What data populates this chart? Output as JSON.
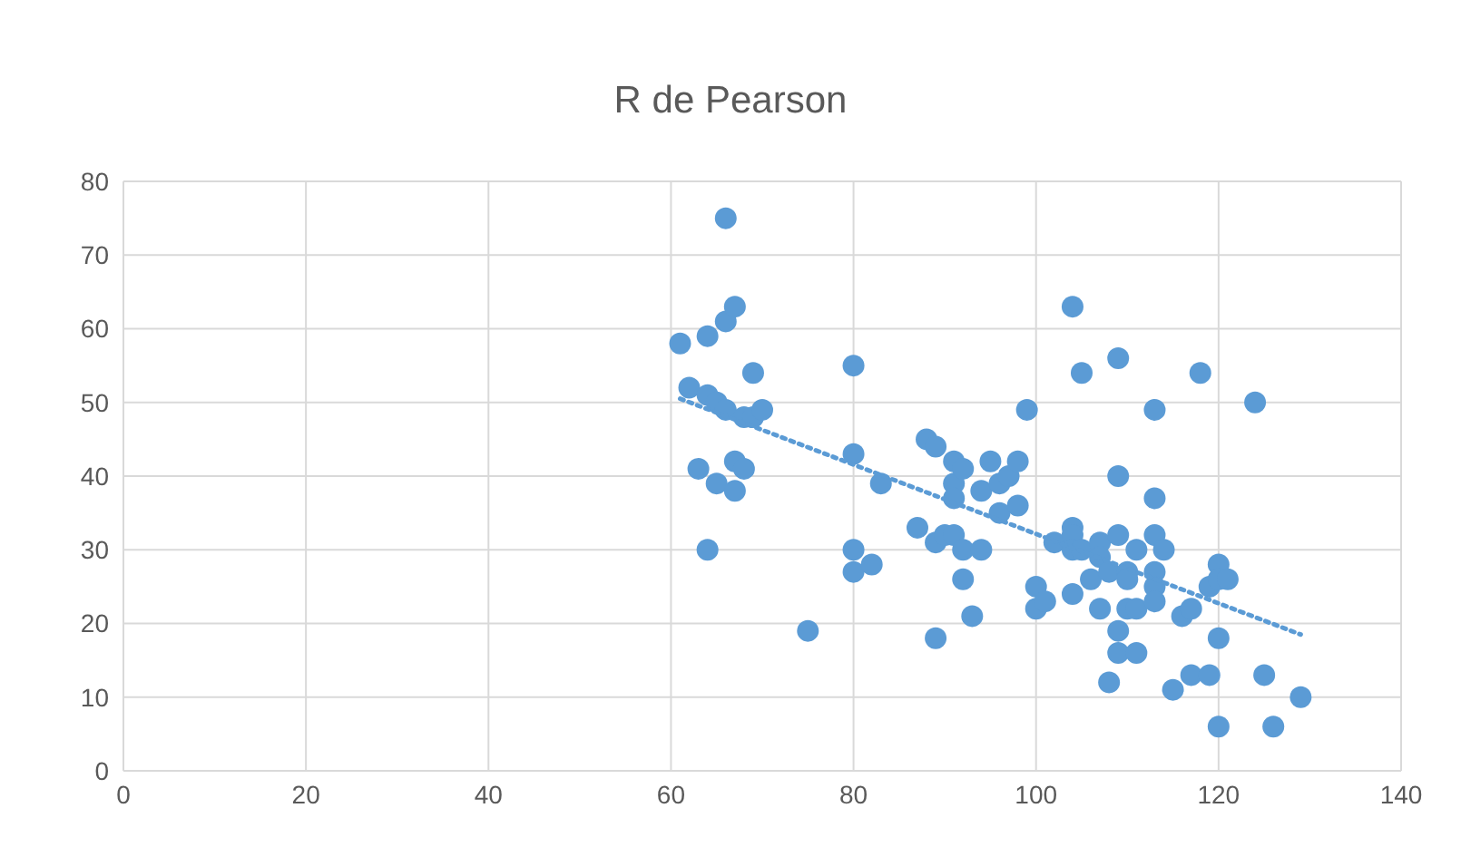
{
  "chart_data": {
    "type": "scatter",
    "title": "R de Pearson",
    "xlim": [
      0,
      140
    ],
    "xticks": [
      0,
      20,
      40,
      60,
      80,
      100,
      120,
      140
    ],
    "ylim": [
      0,
      80
    ],
    "yticks": [
      0,
      10,
      20,
      30,
      40,
      50,
      60,
      70,
      80
    ],
    "grid": true,
    "marker": "circle",
    "series": [
      {
        "color": "#5b9bd5",
        "x": [
          61,
          62,
          63,
          64,
          64,
          64,
          65,
          65,
          66,
          66,
          66,
          67,
          67,
          67,
          68,
          68,
          69,
          69,
          70,
          75,
          80,
          80,
          80,
          80,
          82,
          83,
          87,
          88,
          89,
          89,
          89,
          90,
          91,
          91,
          91,
          91,
          92,
          92,
          92,
          93,
          94,
          94,
          95,
          96,
          96,
          97,
          98,
          98,
          99,
          100,
          100,
          101,
          102,
          104,
          104,
          104,
          104,
          104,
          105,
          105,
          106,
          107,
          107,
          107,
          108,
          108,
          109,
          109,
          109,
          109,
          109,
          110,
          110,
          110,
          111,
          111,
          111,
          113,
          113,
          113,
          113,
          113,
          113,
          114,
          115,
          116,
          117,
          117,
          118,
          119,
          119,
          120,
          120,
          120,
          120,
          121,
          124,
          125,
          126,
          129
        ],
        "values": [
          58,
          52,
          41,
          30,
          59,
          51,
          50,
          39,
          75,
          61,
          49,
          63,
          42,
          38,
          48,
          41,
          54,
          48,
          49,
          19,
          55,
          43,
          30,
          27,
          28,
          39,
          33,
          45,
          44,
          31,
          18,
          32,
          42,
          39,
          37,
          32,
          41,
          30,
          26,
          21,
          38,
          30,
          42,
          39,
          35,
          40,
          42,
          36,
          49,
          25,
          22,
          23,
          31,
          63,
          33,
          32,
          30,
          24,
          54,
          30,
          26,
          31,
          29,
          22,
          27,
          12,
          56,
          40,
          32,
          19,
          16,
          27,
          26,
          22,
          30,
          16,
          22,
          49,
          37,
          32,
          27,
          25,
          23,
          30,
          11,
          21,
          22,
          13,
          54,
          25,
          13,
          28,
          26,
          18,
          6,
          26,
          50,
          13,
          6,
          10
        ]
      },
      {
        "type": "line",
        "color": "#5b9bd5",
        "line_style": "dotted",
        "marker": "none",
        "x": [
          61,
          129
        ],
        "values": [
          50.5,
          18.5
        ]
      }
    ]
  }
}
